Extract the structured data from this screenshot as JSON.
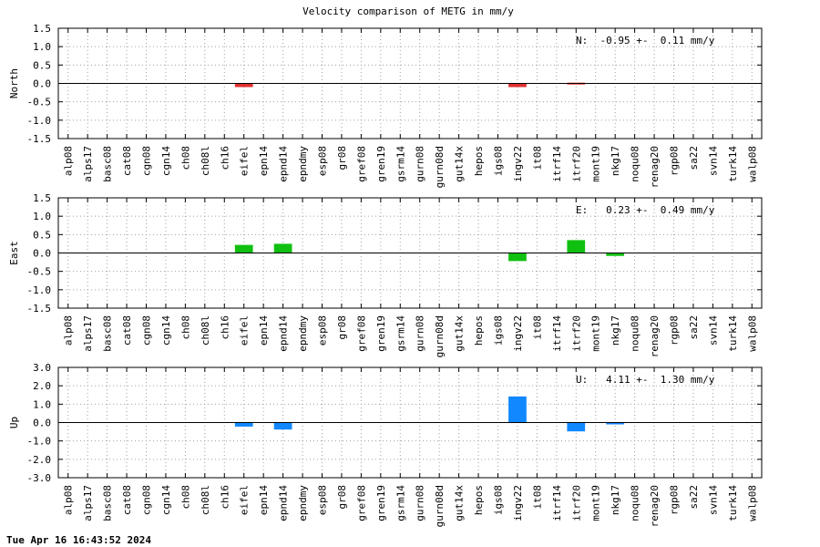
{
  "footer_timestamp": "Tue Apr 16 16:43:52 2024",
  "chart_data": [
    {
      "type": "bar",
      "title": "Velocity comparison of METG in mm/y",
      "ylabel": "North",
      "ylim": [
        -1.5,
        1.5
      ],
      "yticks": [
        -1.5,
        -1.0,
        -0.5,
        0.0,
        0.5,
        1.0,
        1.5
      ],
      "ytick_labels": [
        "-1.5",
        "-1.0",
        "-0.5",
        "0.0",
        "0.5",
        "1.0",
        "1.5"
      ],
      "grid": true,
      "color": "#e03030",
      "stat_text": "N:  -0.95 +-  0.11 mm/y",
      "categories": [
        "alp08",
        "alps17",
        "basc08",
        "cat08",
        "cgn08",
        "cgn14",
        "ch08",
        "ch08l",
        "ch16",
        "eifel",
        "epn14",
        "epnd14",
        "epndmy",
        "esp08",
        "gr08",
        "gref08",
        "gren19",
        "gsrm14",
        "gurn08",
        "gurn08d",
        "gut14x",
        "hepos",
        "igs08",
        "ingv22",
        "it08",
        "itrf14",
        "itrf20",
        "mont19",
        "nkg17",
        "noqu08",
        "renag20",
        "rgp08",
        "sa22",
        "svn14",
        "turk14",
        "walp08"
      ],
      "values": [
        0,
        0,
        0,
        0,
        0,
        0,
        0,
        0,
        0,
        -0.1,
        0,
        0,
        0,
        0,
        0,
        0,
        0,
        0,
        0,
        0,
        0,
        0,
        0,
        -0.1,
        0,
        0,
        0.02,
        0,
        0,
        0,
        0,
        0,
        0,
        0,
        0,
        0
      ]
    },
    {
      "type": "bar",
      "title": "",
      "ylabel": "East",
      "ylim": [
        -1.5,
        1.5
      ],
      "yticks": [
        -1.5,
        -1.0,
        -0.5,
        0.0,
        0.5,
        1.0,
        1.5
      ],
      "ytick_labels": [
        "-1.5",
        "-1.0",
        "-0.5",
        "0.0",
        "0.5",
        "1.0",
        "1.5"
      ],
      "grid": true,
      "color": "#10c010",
      "stat_text": "E:   0.23 +-  0.49 mm/y",
      "categories": [
        "alp08",
        "alps17",
        "basc08",
        "cat08",
        "cgn08",
        "cgn14",
        "ch08",
        "ch08l",
        "ch16",
        "eifel",
        "epn14",
        "epnd14",
        "epndmy",
        "esp08",
        "gr08",
        "gref08",
        "gren19",
        "gsrm14",
        "gurn08",
        "gurn08d",
        "gut14x",
        "hepos",
        "igs08",
        "ingv22",
        "it08",
        "itrf14",
        "itrf20",
        "mont19",
        "nkg17",
        "noqu08",
        "renag20",
        "rgp08",
        "sa22",
        "svn14",
        "turk14",
        "walp08"
      ],
      "values": [
        0,
        0,
        0,
        0,
        0,
        0,
        0,
        0,
        0,
        0.22,
        0,
        0.25,
        0,
        0,
        0,
        0,
        0,
        0,
        0,
        0,
        0,
        0,
        0,
        -0.22,
        0,
        0,
        0.35,
        0,
        -0.08,
        0,
        0,
        0,
        0,
        0,
        0,
        0
      ]
    },
    {
      "type": "bar",
      "title": "",
      "ylabel": "Up",
      "ylim": [
        -3.0,
        3.0
      ],
      "yticks": [
        -3.0,
        -2.0,
        -1.0,
        0.0,
        1.0,
        2.0,
        3.0
      ],
      "ytick_labels": [
        "-3.0",
        "-2.0",
        "-1.0",
        "0.0",
        "1.0",
        "2.0",
        "3.0"
      ],
      "grid": true,
      "color": "#1188ff",
      "stat_text": "U:   4.11 +-  1.30 mm/y",
      "categories": [
        "alp08",
        "alps17",
        "basc08",
        "cat08",
        "cgn08",
        "cgn14",
        "ch08",
        "ch08l",
        "ch16",
        "eifel",
        "epn14",
        "epnd14",
        "epndmy",
        "esp08",
        "gr08",
        "gref08",
        "gren19",
        "gsrm14",
        "gurn08",
        "gurn08d",
        "gut14x",
        "hepos",
        "igs08",
        "ingv22",
        "it08",
        "itrf14",
        "itrf20",
        "mont19",
        "nkg17",
        "noqu08",
        "renag20",
        "rgp08",
        "sa22",
        "svn14",
        "turk14",
        "walp08"
      ],
      "values": [
        0,
        0,
        0,
        0,
        0,
        0,
        0,
        0,
        0,
        -0.22,
        0,
        -0.38,
        0,
        0,
        0,
        0,
        0,
        0,
        0,
        0,
        0,
        0,
        0,
        1.42,
        0,
        0,
        -0.48,
        0,
        -0.05,
        0,
        0,
        0,
        0,
        0,
        0,
        0
      ]
    }
  ]
}
